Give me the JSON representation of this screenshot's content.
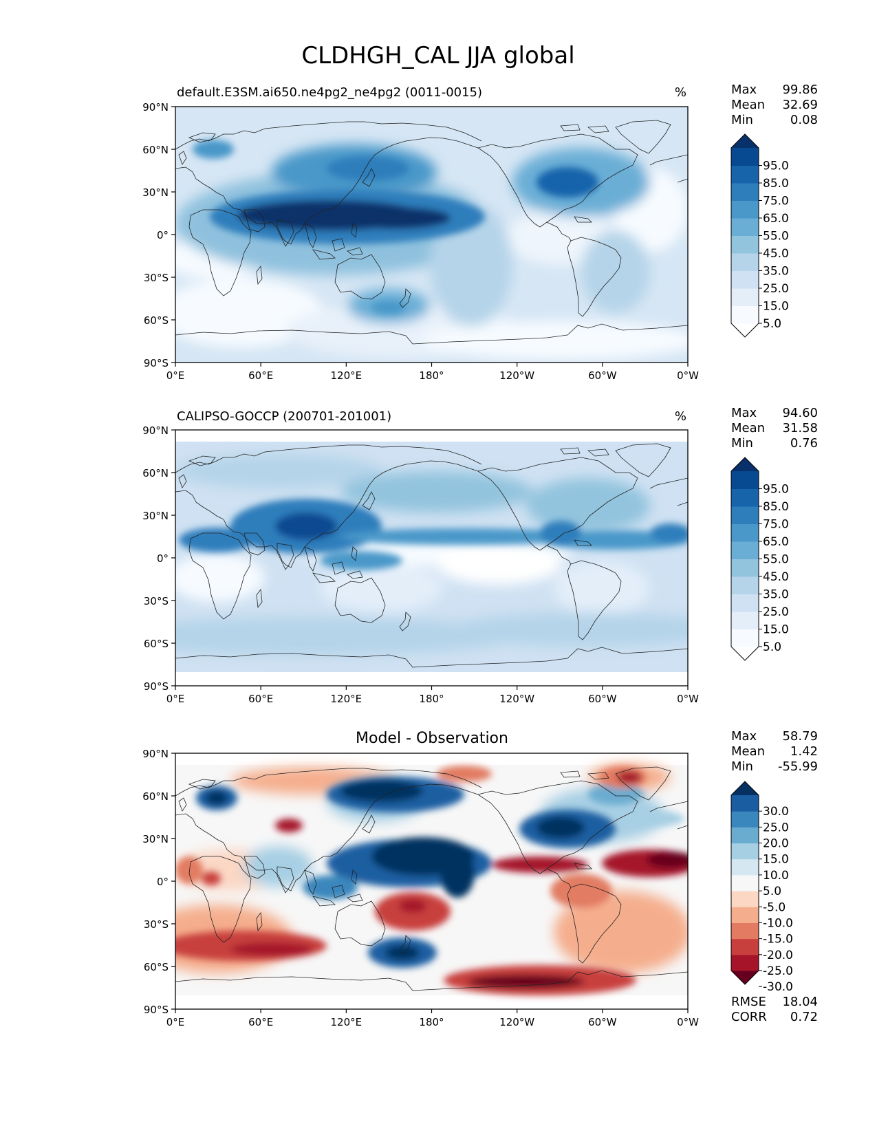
{
  "figure": {
    "title": "CLDHGH_CAL JJA global"
  },
  "axes": {
    "lat_ticks": [
      "90°N",
      "60°N",
      "30°N",
      "0°",
      "30°S",
      "60°S",
      "90°S"
    ],
    "lon_ticks": [
      "0°E",
      "60°E",
      "120°E",
      "180°",
      "120°W",
      "60°W",
      "0°W"
    ]
  },
  "panels": [
    {
      "title": "default.E3SM.ai650.ne4pg2_ne4pg2 (0011-0015)",
      "units": "%",
      "stats": [
        {
          "label": "Max",
          "value": "99.86"
        },
        {
          "label": "Mean",
          "value": "32.69"
        },
        {
          "label": "Min",
          "value": "0.08"
        }
      ],
      "colorbar": {
        "colors": [
          "#ffffff",
          "#f7fbff",
          "#e3eef9",
          "#cfe1f2",
          "#b5d4e9",
          "#93c4de",
          "#6aaed6",
          "#4a98c9",
          "#2e7ebc",
          "#1764ab",
          "#084a91",
          "#08306b"
        ],
        "labels": [
          "95.0",
          "85.0",
          "75.0",
          "65.0",
          "55.0",
          "45.0",
          "35.0",
          "25.0",
          "15.0",
          "5.0"
        ]
      }
    },
    {
      "title": "CALIPSO-GOCCP (200701-201001)",
      "units": "%",
      "stats": [
        {
          "label": "Max",
          "value": "94.60"
        },
        {
          "label": "Mean",
          "value": "31.58"
        },
        {
          "label": "Min",
          "value": "0.76"
        }
      ],
      "colorbar": {
        "colors": [
          "#ffffff",
          "#f7fbff",
          "#e3eef9",
          "#cfe1f2",
          "#b5d4e9",
          "#93c4de",
          "#6aaed6",
          "#4a98c9",
          "#2e7ebc",
          "#1764ab",
          "#084a91",
          "#08306b"
        ],
        "labels": [
          "95.0",
          "85.0",
          "75.0",
          "65.0",
          "55.0",
          "45.0",
          "35.0",
          "25.0",
          "15.0",
          "5.0"
        ]
      }
    },
    {
      "title": "Model - Observation",
      "stats": [
        {
          "label": "Max",
          "value": "58.79"
        },
        {
          "label": "Mean",
          "value": "1.42"
        },
        {
          "label": "Min",
          "value": "-55.99"
        }
      ],
      "extra_stats": [
        {
          "label": "RMSE",
          "value": "18.04"
        },
        {
          "label": "CORR",
          "value": "0.72"
        }
      ],
      "colorbar": {
        "colors": [
          "#67001f",
          "#a51429",
          "#c8403e",
          "#e27b62",
          "#f5ae8d",
          "#fbd7c4",
          "#f7f7f7",
          "#d5e7f1",
          "#a7cfe4",
          "#6aacd0",
          "#3a87bd",
          "#1a5ea1",
          "#053061"
        ],
        "labels": [
          "30.0",
          "25.0",
          "20.0",
          "15.0",
          "10.0",
          "5.0",
          "-5.0",
          "-10.0",
          "-15.0",
          "-20.0",
          "-25.0",
          "-30.0"
        ]
      }
    }
  ]
}
